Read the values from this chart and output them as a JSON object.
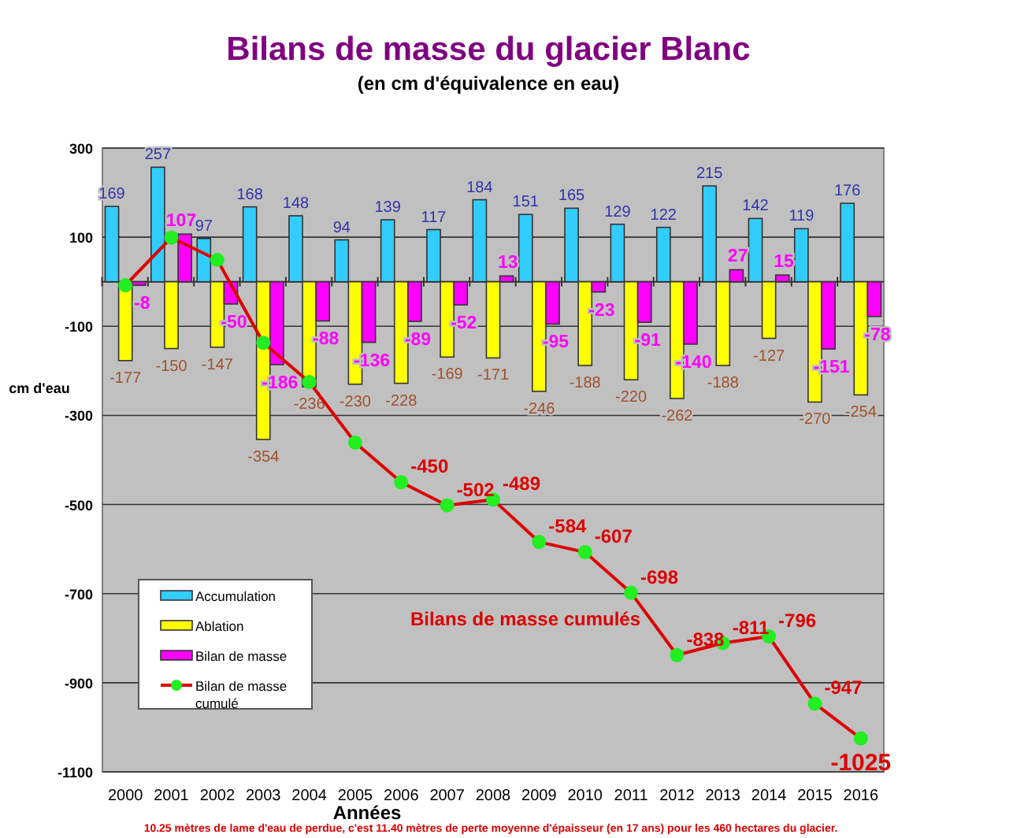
{
  "chart_data": {
    "type": "bar",
    "title": "Bilans de masse du glacier Blanc",
    "subtitle": "(en cm d'équivalence en eau)",
    "xlabel": "Années",
    "ylabel": "cm d'eau",
    "categories": [
      "2000",
      "2001",
      "2002",
      "2003",
      "2004",
      "2005",
      "2006",
      "2007",
      "2008",
      "2009",
      "2010",
      "2011",
      "2012",
      "2013",
      "2014",
      "2015",
      "2016"
    ],
    "series": [
      {
        "name": "Accumulation",
        "color": "#33ccff",
        "values": [
          169,
          257,
          97,
          168,
          148,
          94,
          139,
          117,
          184,
          151,
          165,
          129,
          122,
          215,
          142,
          119,
          176
        ]
      },
      {
        "name": "Ablation",
        "color": "#ffff00",
        "values": [
          -177,
          -150,
          -147,
          -354,
          -236,
          -230,
          -228,
          -169,
          -171,
          -246,
          -188,
          -220,
          -262,
          -188,
          -127,
          -270,
          -254
        ]
      },
      {
        "name": "Bilan de masse",
        "color": "#ff00ff",
        "values": [
          -8,
          107,
          -50,
          -186,
          -88,
          -136,
          -89,
          -52,
          13,
          -95,
          -23,
          -91,
          -140,
          27,
          15,
          -151,
          -78
        ]
      },
      {
        "name": "Bilan de masse cumulé",
        "type": "line",
        "color": "#dd0000",
        "marker": "circle",
        "values": [
          -8,
          99,
          49,
          -137,
          -225,
          -361,
          -450,
          -502,
          -489,
          -584,
          -607,
          -698,
          -838,
          -811,
          -796,
          -947,
          -1025
        ],
        "value_labels": [
          null,
          null,
          null,
          null,
          null,
          null,
          "-450",
          "-502",
          "-489",
          "-584",
          "-607",
          "-698",
          "-838",
          "-811",
          "-796",
          "-947",
          "-1025"
        ]
      }
    ],
    "data_labels": true,
    "ylim": [
      -1100,
      300
    ],
    "yticks": [
      300,
      100,
      -100,
      -300,
      -500,
      -700,
      -900,
      -1100
    ],
    "grid": "y",
    "legend": "left",
    "annotations": [
      "Bilans de masse cumulés",
      "10.25 mètres de lame d'eau de perdue, c'est 11.40 mètres de perte moyenne d'épaisseur (en 17 ans) pour les 460 hectares du glacier."
    ]
  }
}
